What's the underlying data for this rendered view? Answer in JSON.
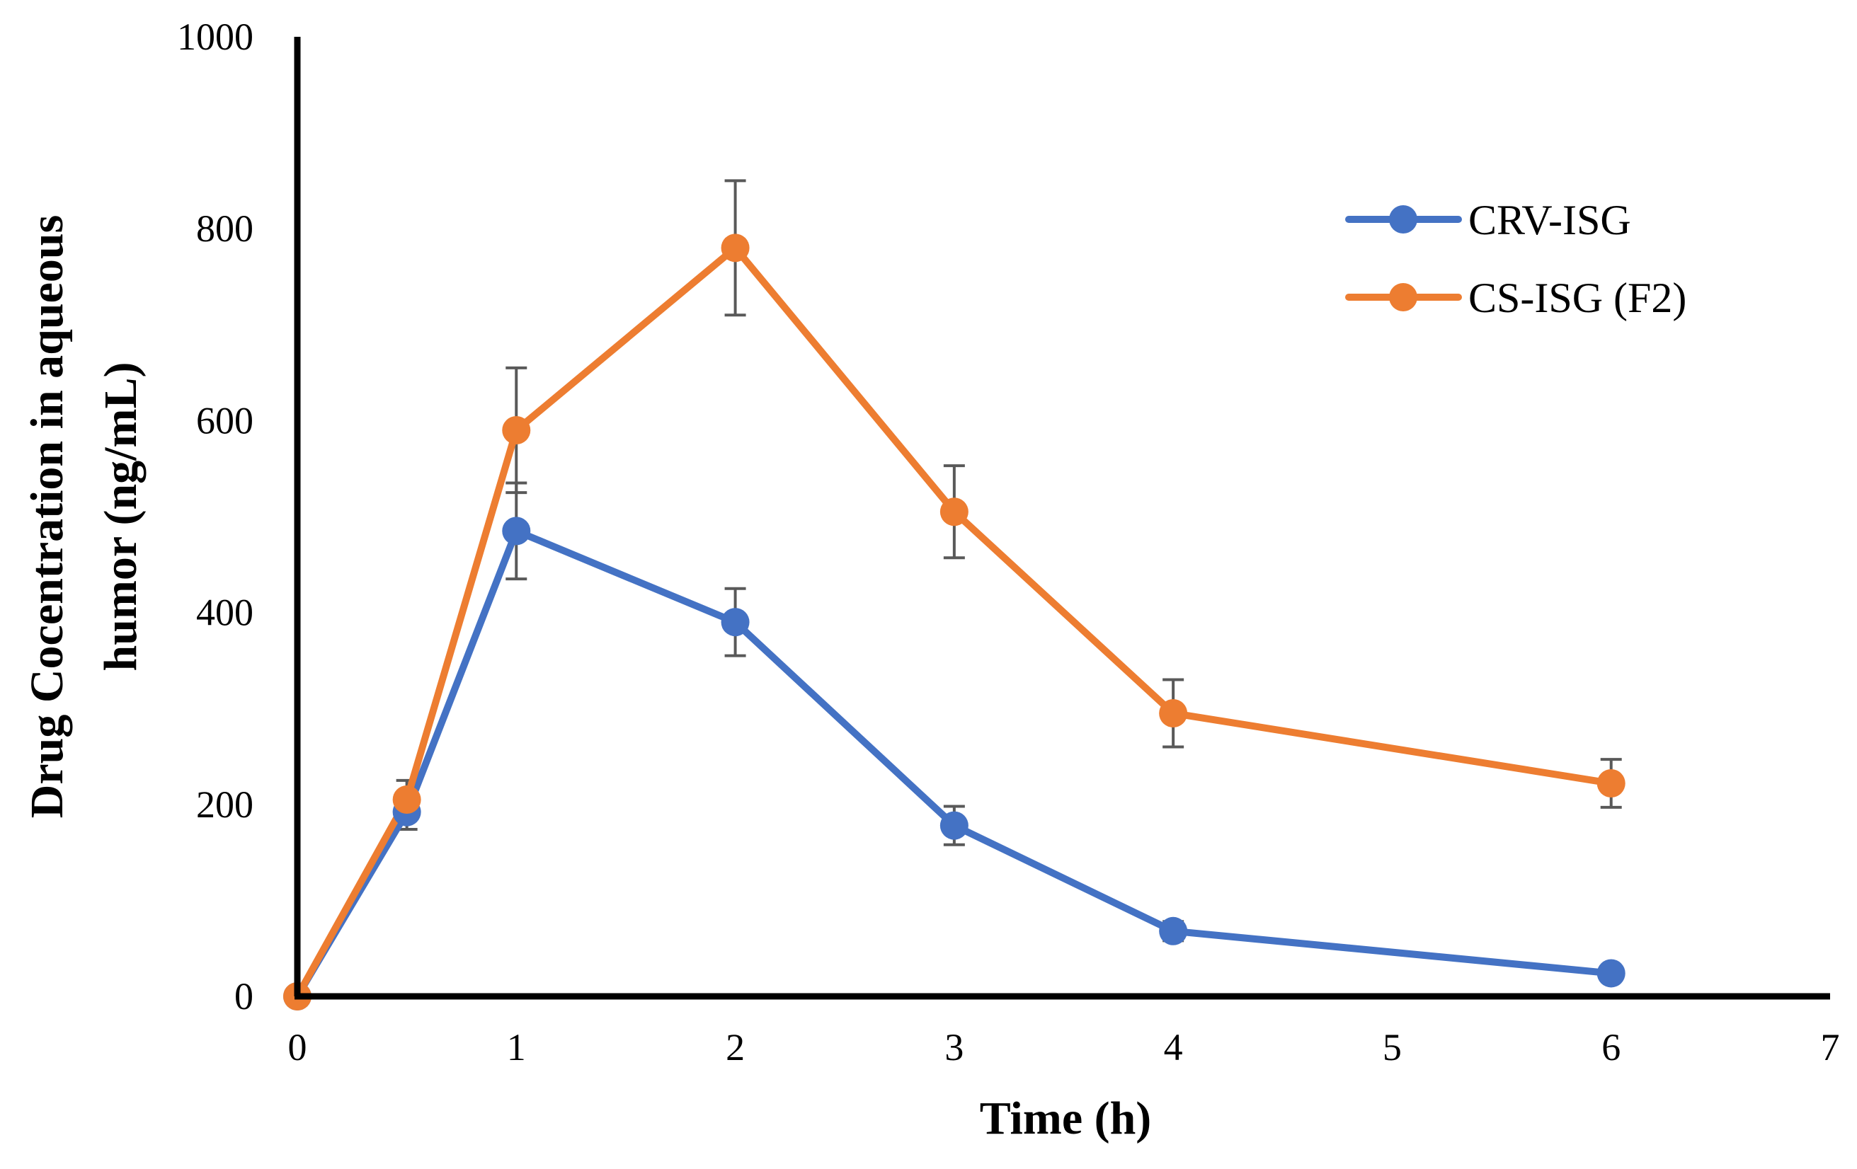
{
  "chart_data": {
    "type": "line",
    "title": "",
    "xlabel": "Time (h)",
    "ylabel_lines": [
      "Drug Cocentration in aqueous",
      "humor (ng/mL)"
    ],
    "xlim": [
      0,
      7
    ],
    "ylim": [
      0,
      1000
    ],
    "xticks": [
      0,
      1,
      2,
      3,
      4,
      5,
      6,
      7
    ],
    "yticks": [
      0,
      200,
      400,
      600,
      800,
      1000
    ],
    "grid": false,
    "legend_position": "top-right",
    "series": [
      {
        "name": "CRV-ISG",
        "color": "#4472C4",
        "x": [
          0,
          0.5,
          1,
          2,
          3,
          4,
          6
        ],
        "y": [
          0,
          192,
          485,
          390,
          178,
          68,
          24
        ],
        "err": [
          0,
          18,
          50,
          35,
          20,
          10,
          5
        ]
      },
      {
        "name": "CS-ISG (F2)",
        "color": "#ED7D31",
        "x": [
          0,
          0.5,
          1,
          2,
          3,
          4,
          6
        ],
        "y": [
          0,
          205,
          590,
          780,
          505,
          295,
          222
        ],
        "err": [
          0,
          20,
          65,
          70,
          48,
          35,
          25
        ]
      }
    ],
    "error_bar_color": "#595959"
  }
}
